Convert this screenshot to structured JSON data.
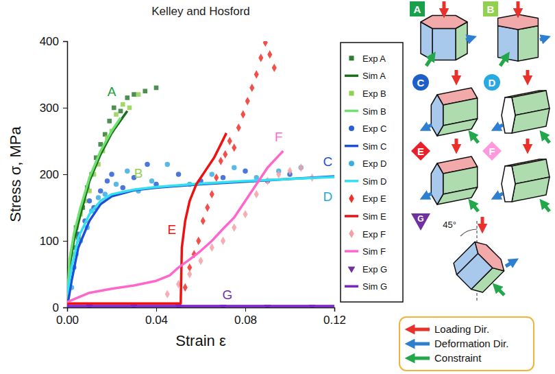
{
  "chart_data": {
    "type": "scatter",
    "title": "Kelley and Hosford",
    "x_label": "Strain ε",
    "y_label": "Stress σ, MPa",
    "xlim": [
      0,
      0.12
    ],
    "xticks": [
      {
        "value": 0,
        "label": "0.00"
      },
      0.04,
      0.08,
      0.12
    ],
    "ylim": [
      0,
      400
    ],
    "yticks": [
      0,
      100,
      200,
      300,
      400
    ],
    "legend": "right",
    "series": [
      {
        "name": "Exp A",
        "type": "scatter",
        "marker": "square",
        "color": "#2e7d32",
        "x": [
          0.002,
          0.003,
          0.004,
          0.005,
          0.007,
          0.009,
          0.011,
          0.013,
          0.015,
          0.017,
          0.019,
          0.021,
          0.024,
          0.027,
          0.03,
          0.035,
          0.04
        ],
        "values": [
          60,
          90,
          120,
          105,
          150,
          180,
          200,
          225,
          245,
          260,
          280,
          300,
          295,
          315,
          320,
          325,
          330
        ]
      },
      {
        "name": "Sim A",
        "type": "line",
        "line_style": "solid",
        "color": "#1b6e1b",
        "x": [
          0,
          0.001,
          0.003,
          0.006,
          0.01,
          0.015,
          0.02,
          0.027
        ],
        "values": [
          0,
          60,
          100,
          140,
          190,
          230,
          262,
          295
        ]
      },
      {
        "name": "Exp B",
        "type": "scatter",
        "marker": "square",
        "color": "#92d050",
        "x": [
          0.001,
          0.002,
          0.004,
          0.006,
          0.008,
          0.01,
          0.012,
          0.014,
          0.016,
          0.018,
          0.02,
          0.022,
          0.025,
          0.028,
          0.032
        ],
        "values": [
          40,
          80,
          110,
          140,
          160,
          175,
          200,
          215,
          235,
          255,
          265,
          290,
          305,
          300,
          320
        ]
      },
      {
        "name": "Sim B",
        "type": "line",
        "line_style": "solid",
        "color": "#6ee06e",
        "x": [
          0,
          0.001,
          0.003,
          0.006,
          0.01,
          0.015,
          0.02,
          0.024
        ],
        "values": [
          0,
          70,
          110,
          150,
          195,
          235,
          265,
          285
        ]
      },
      {
        "name": "Exp C",
        "type": "scatter",
        "marker": "circle",
        "color": "#2a5fd6",
        "x": [
          0.003,
          0.005,
          0.008,
          0.01,
          0.012,
          0.015,
          0.018,
          0.02,
          0.025,
          0.03,
          0.036,
          0.04,
          0.05,
          0.06,
          0.07,
          0.08,
          0.09,
          0.1
        ],
        "values": [
          60,
          110,
          130,
          160,
          150,
          175,
          190,
          200,
          180,
          195,
          215,
          185,
          200,
          190,
          195,
          205,
          190,
          200
        ]
      },
      {
        "name": "Sim C",
        "type": "line",
        "line_style": "solid",
        "color": "#1f4fd8",
        "x": [
          0,
          0.002,
          0.005,
          0.01,
          0.015,
          0.02,
          0.03,
          0.04,
          0.06,
          0.08,
          0.1,
          0.12
        ],
        "values": [
          0,
          40,
          90,
          130,
          155,
          167,
          176,
          180,
          185,
          189,
          193,
          197
        ]
      },
      {
        "name": "Exp D",
        "type": "scatter",
        "marker": "circle",
        "color": "#3aaee0",
        "x": [
          0.002,
          0.004,
          0.006,
          0.009,
          0.011,
          0.014,
          0.017,
          0.022,
          0.027,
          0.032,
          0.038,
          0.045,
          0.055,
          0.065,
          0.075,
          0.085,
          0.095,
          0.105
        ],
        "values": [
          30,
          80,
          100,
          120,
          145,
          165,
          170,
          185,
          205,
          175,
          190,
          215,
          185,
          200,
          210,
          195,
          205,
          210
        ]
      },
      {
        "name": "Sim D",
        "type": "line",
        "line_style": "solid",
        "color": "#33e0f0",
        "x": [
          0,
          0.002,
          0.005,
          0.01,
          0.015,
          0.02,
          0.03,
          0.04,
          0.06,
          0.08,
          0.1,
          0.12
        ],
        "values": [
          20,
          60,
          105,
          140,
          160,
          170,
          177,
          181,
          186,
          190,
          193,
          196
        ]
      },
      {
        "name": "Exp E",
        "type": "scatter",
        "marker": "diamond",
        "color": "#f0302a",
        "x": [
          0.053,
          0.055,
          0.057,
          0.059,
          0.061,
          0.063,
          0.065,
          0.067,
          0.069,
          0.071,
          0.073,
          0.075,
          0.077,
          0.079,
          0.081,
          0.083,
          0.085,
          0.087,
          0.089,
          0.091,
          0.093
        ],
        "values": [
          30,
          60,
          80,
          100,
          130,
          150,
          170,
          195,
          220,
          230,
          250,
          240,
          270,
          290,
          310,
          330,
          350,
          375,
          398,
          380,
          360
        ]
      },
      {
        "name": "Sim E",
        "type": "line",
        "line_style": "solid",
        "color": "#ee1111",
        "x": [
          0,
          0.051,
          0.0515,
          0.053,
          0.055,
          0.058,
          0.062,
          0.066,
          0.069,
          0.0715
        ],
        "values": [
          6,
          6,
          90,
          130,
          160,
          185,
          205,
          225,
          245,
          262
        ]
      },
      {
        "name": "Exp F",
        "type": "scatter",
        "marker": "diamond",
        "color": "#f4a0a8",
        "x": [
          0.045,
          0.05,
          0.055,
          0.06,
          0.065,
          0.07,
          0.075,
          0.08,
          0.085,
          0.09,
          0.095,
          0.1,
          0.105,
          0.11
        ],
        "values": [
          20,
          35,
          50,
          70,
          90,
          100,
          120,
          140,
          170,
          190,
          200,
          205,
          210,
          195
        ]
      },
      {
        "name": "Sim F",
        "type": "line",
        "line_style": "solid",
        "color": "#ff66cc",
        "x": [
          0,
          0.01,
          0.02,
          0.03,
          0.04,
          0.046,
          0.05,
          0.055,
          0.06,
          0.065,
          0.07,
          0.075,
          0.08,
          0.085,
          0.09,
          0.095,
          0.097
        ],
        "values": [
          8,
          22,
          28,
          33,
          40,
          48,
          60,
          72,
          85,
          100,
          118,
          135,
          160,
          185,
          210,
          228,
          235
        ]
      },
      {
        "name": "Exp G",
        "type": "scatter",
        "marker": "triangle-down",
        "color": "#7030a0",
        "x": [
          0.01,
          0.03,
          0.05,
          0.07,
          0.09,
          0.11
        ],
        "values": [
          1,
          1,
          1,
          1,
          1,
          1
        ]
      },
      {
        "name": "Sim G",
        "type": "line",
        "line_style": "solid",
        "color": "#7a22cc",
        "x": [
          0,
          0.12
        ],
        "values": [
          2,
          2
        ]
      }
    ],
    "annotations": [
      {
        "text": "A",
        "x": 0.02,
        "y": 318,
        "color": "#1b9e3a"
      },
      {
        "text": "B",
        "x": 0.032,
        "y": 195,
        "color": "#92d050"
      },
      {
        "text": "C",
        "x": 0.117,
        "y": 212,
        "color": "#1f4fd8"
      },
      {
        "text": "D",
        "x": 0.117,
        "y": 160,
        "color": "#1fa8e0"
      },
      {
        "text": "E",
        "x": 0.047,
        "y": 110,
        "color": "#ee1111"
      },
      {
        "text": "F",
        "x": 0.095,
        "y": 250,
        "color": "#ff66cc"
      },
      {
        "text": "G",
        "x": 0.072,
        "y": 12,
        "color": "#7030a0"
      }
    ]
  },
  "diagram": {
    "panels": [
      {
        "label": "A",
        "shape": "square",
        "color": "#1aa04a"
      },
      {
        "label": "B",
        "shape": "square",
        "color": "#92d050"
      },
      {
        "label": "C",
        "shape": "circle",
        "color": "#1f5fc8"
      },
      {
        "label": "D",
        "shape": "circle",
        "color": "#2aa8e0"
      },
      {
        "label": "E",
        "shape": "diamond",
        "color": "#e8202a"
      },
      {
        "label": "F",
        "shape": "diamond",
        "color": "#ff99dd"
      },
      {
        "label": "G",
        "shape": "triangle",
        "color": "#7030a0"
      }
    ],
    "angle_label": "45°"
  },
  "key": {
    "items": [
      {
        "text": "Loading Dir.",
        "color": "#e8312a"
      },
      {
        "text": "Deformation Dir.",
        "color": "#2f7fd0"
      },
      {
        "text": "Constraint",
        "color": "#22a84a"
      }
    ]
  }
}
